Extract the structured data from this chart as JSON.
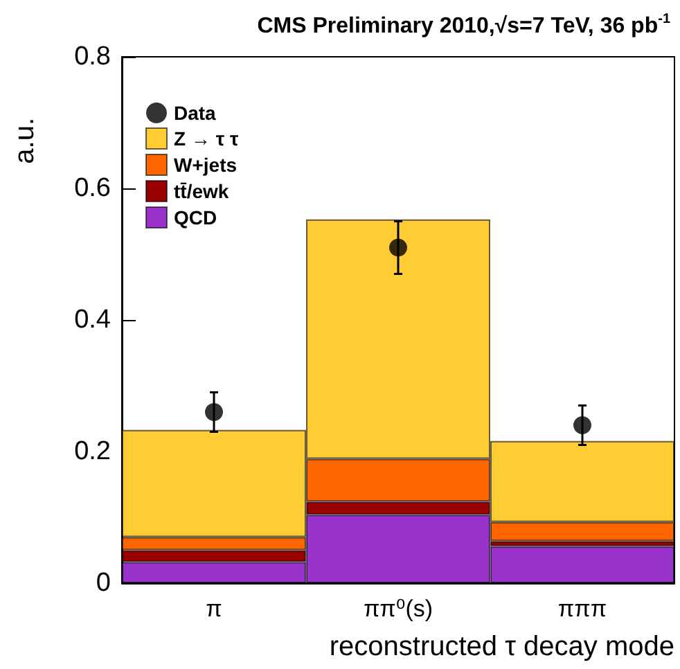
{
  "chart_data": {
    "type": "bar",
    "title": "CMS Preliminary 2010,√s=7 TeV, 36 pb$^{-1}$",
    "xlabel": "reconstructed τ decay mode",
    "ylabel": "a.u.",
    "categories": [
      "π",
      "ππ⁰(s)",
      "πππ"
    ],
    "stacked": true,
    "series": [
      {
        "name": "QCD",
        "color": "#9933cc",
        "values": [
          0.032,
          0.104,
          0.056
        ]
      },
      {
        "name": "tt̄/ewk",
        "color": "#990000",
        "values": [
          0.018,
          0.02,
          0.008
        ]
      },
      {
        "name": "W+jets",
        "color": "#ff6600",
        "values": [
          0.02,
          0.065,
          0.029
        ]
      },
      {
        "name": "Z → τ τ",
        "color": "#ffcc33",
        "values": [
          0.163,
          0.364,
          0.123
        ]
      },
      {
        "name": "Data",
        "type": "scatter",
        "color": "#000000",
        "x": [
          "π",
          "ππ⁰(s)",
          "πππ"
        ],
        "values": [
          0.26,
          0.51,
          0.24
        ],
        "errors": [
          0.03,
          0.04,
          0.03
        ],
        "marker": "circle"
      }
    ],
    "ylim": [
      0,
      0.8
    ],
    "yticks": [
      0,
      0.2,
      0.4,
      0.6,
      0.8
    ],
    "grid": false,
    "legend": "top left"
  }
}
